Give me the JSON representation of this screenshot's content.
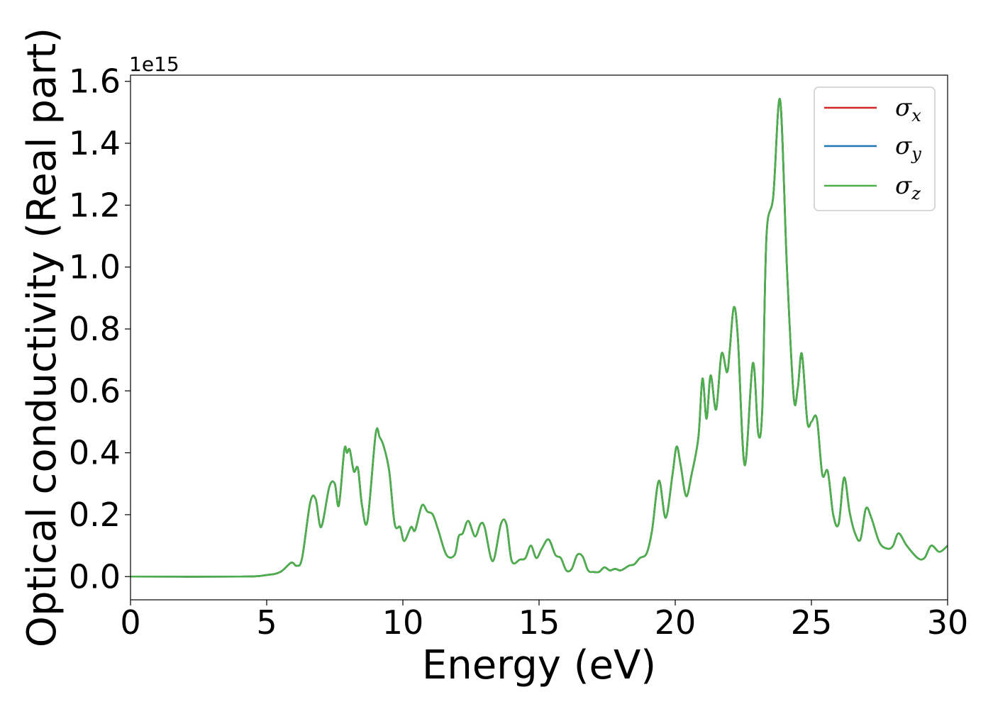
{
  "chart_data": {
    "type": "line",
    "title": "",
    "xlabel": "Energy (eV)",
    "ylabel": "Optical conductivity (Real part)",
    "y_offset_label": "1e15",
    "xlim": [
      0,
      30
    ],
    "ylim": [
      -0.075,
      1.62
    ],
    "x_ticks": [
      0,
      5,
      10,
      15,
      20,
      25,
      30
    ],
    "x_tick_labels": [
      "0",
      "5",
      "10",
      "15",
      "20",
      "25",
      "30"
    ],
    "y_ticks": [
      0.0,
      0.2,
      0.4,
      0.6,
      0.8,
      1.0,
      1.2,
      1.4,
      1.6
    ],
    "y_tick_labels": [
      "0.0",
      "0.2",
      "0.4",
      "0.6",
      "0.8",
      "1.0",
      "1.2",
      "1.4",
      "1.6"
    ],
    "grid": false,
    "legend_position": "top-right",
    "x": [
      0,
      4,
      5,
      5.5,
      5.9,
      6.1,
      6.3,
      6.6,
      6.8,
      7.0,
      7.3,
      7.5,
      7.65,
      7.85,
      7.95,
      8.05,
      8.2,
      8.35,
      8.5,
      8.7,
      9.0,
      9.15,
      9.3,
      9.5,
      9.7,
      9.9,
      10.05,
      10.3,
      10.45,
      10.7,
      10.9,
      11.1,
      11.3,
      11.6,
      11.9,
      12.05,
      12.2,
      12.4,
      12.65,
      12.85,
      13.0,
      13.3,
      13.6,
      13.8,
      14.0,
      14.3,
      14.5,
      14.7,
      14.9,
      15.1,
      15.35,
      15.6,
      15.8,
      16.0,
      16.2,
      16.4,
      16.6,
      16.8,
      17.0,
      17.2,
      17.4,
      17.6,
      17.8,
      18.0,
      18.3,
      18.5,
      18.7,
      18.95,
      19.15,
      19.4,
      19.65,
      19.9,
      20.05,
      20.2,
      20.4,
      20.6,
      20.85,
      21.0,
      21.15,
      21.3,
      21.5,
      21.7,
      21.9,
      22.0,
      22.15,
      22.3,
      22.55,
      22.85,
      23.05,
      23.2,
      23.35,
      23.6,
      23.85,
      24.1,
      24.35,
      24.5,
      24.65,
      24.85,
      25.0,
      25.2,
      25.4,
      25.6,
      25.8,
      26.0,
      26.2,
      26.4,
      26.6,
      26.8,
      27.0,
      27.2,
      27.5,
      27.8,
      28.0,
      28.2,
      28.5,
      28.9,
      29.15,
      29.4,
      29.7,
      30.0
    ],
    "series": [
      {
        "name": "σx",
        "color": "#d62728",
        "values": [
          0.0,
          0.0,
          0.005,
          0.015,
          0.045,
          0.035,
          0.06,
          0.24,
          0.25,
          0.16,
          0.29,
          0.3,
          0.23,
          0.41,
          0.4,
          0.41,
          0.34,
          0.35,
          0.23,
          0.18,
          0.46,
          0.45,
          0.42,
          0.34,
          0.17,
          0.16,
          0.115,
          0.16,
          0.15,
          0.23,
          0.21,
          0.2,
          0.15,
          0.07,
          0.07,
          0.13,
          0.14,
          0.18,
          0.13,
          0.17,
          0.16,
          0.05,
          0.17,
          0.17,
          0.05,
          0.055,
          0.06,
          0.1,
          0.06,
          0.09,
          0.12,
          0.07,
          0.06,
          0.02,
          0.025,
          0.07,
          0.065,
          0.02,
          0.015,
          0.015,
          0.03,
          0.02,
          0.025,
          0.02,
          0.035,
          0.04,
          0.06,
          0.075,
          0.15,
          0.31,
          0.19,
          0.33,
          0.42,
          0.36,
          0.26,
          0.33,
          0.45,
          0.64,
          0.51,
          0.65,
          0.54,
          0.72,
          0.66,
          0.73,
          0.87,
          0.77,
          0.36,
          0.69,
          0.46,
          0.55,
          1.1,
          1.23,
          1.54,
          1.0,
          0.58,
          0.61,
          0.72,
          0.5,
          0.5,
          0.51,
          0.33,
          0.34,
          0.2,
          0.17,
          0.32,
          0.21,
          0.14,
          0.12,
          0.22,
          0.19,
          0.11,
          0.09,
          0.1,
          0.14,
          0.1,
          0.06,
          0.06,
          0.1,
          0.08,
          0.1
        ]
      },
      {
        "name": "σy",
        "color": "#1f77b4",
        "values": [
          0.0,
          0.0,
          0.005,
          0.015,
          0.045,
          0.035,
          0.06,
          0.24,
          0.25,
          0.16,
          0.29,
          0.3,
          0.23,
          0.41,
          0.4,
          0.41,
          0.34,
          0.35,
          0.23,
          0.18,
          0.46,
          0.45,
          0.42,
          0.34,
          0.17,
          0.16,
          0.115,
          0.16,
          0.15,
          0.23,
          0.21,
          0.2,
          0.15,
          0.07,
          0.07,
          0.13,
          0.14,
          0.18,
          0.13,
          0.17,
          0.16,
          0.05,
          0.17,
          0.17,
          0.05,
          0.055,
          0.06,
          0.1,
          0.06,
          0.09,
          0.12,
          0.07,
          0.06,
          0.02,
          0.025,
          0.07,
          0.065,
          0.02,
          0.015,
          0.015,
          0.03,
          0.02,
          0.025,
          0.02,
          0.035,
          0.04,
          0.06,
          0.075,
          0.15,
          0.31,
          0.19,
          0.33,
          0.42,
          0.36,
          0.26,
          0.33,
          0.45,
          0.64,
          0.51,
          0.65,
          0.54,
          0.72,
          0.66,
          0.73,
          0.87,
          0.77,
          0.36,
          0.69,
          0.46,
          0.55,
          1.1,
          1.23,
          1.54,
          1.0,
          0.58,
          0.61,
          0.72,
          0.5,
          0.5,
          0.51,
          0.33,
          0.34,
          0.2,
          0.17,
          0.32,
          0.21,
          0.14,
          0.12,
          0.22,
          0.19,
          0.11,
          0.09,
          0.1,
          0.14,
          0.1,
          0.06,
          0.06,
          0.1,
          0.08,
          0.1
        ]
      },
      {
        "name": "σz",
        "color": "#4daf4a",
        "values": [
          0.0,
          0.0,
          0.005,
          0.015,
          0.045,
          0.035,
          0.06,
          0.24,
          0.25,
          0.16,
          0.29,
          0.3,
          0.23,
          0.41,
          0.4,
          0.41,
          0.34,
          0.35,
          0.23,
          0.18,
          0.46,
          0.45,
          0.42,
          0.34,
          0.17,
          0.16,
          0.115,
          0.16,
          0.15,
          0.23,
          0.21,
          0.2,
          0.15,
          0.07,
          0.07,
          0.13,
          0.14,
          0.18,
          0.13,
          0.17,
          0.16,
          0.05,
          0.17,
          0.17,
          0.05,
          0.055,
          0.06,
          0.1,
          0.06,
          0.09,
          0.12,
          0.07,
          0.06,
          0.02,
          0.025,
          0.07,
          0.065,
          0.02,
          0.015,
          0.015,
          0.03,
          0.02,
          0.025,
          0.02,
          0.035,
          0.04,
          0.06,
          0.075,
          0.15,
          0.31,
          0.19,
          0.33,
          0.42,
          0.36,
          0.26,
          0.33,
          0.45,
          0.64,
          0.51,
          0.65,
          0.54,
          0.72,
          0.66,
          0.73,
          0.87,
          0.77,
          0.36,
          0.69,
          0.46,
          0.55,
          1.1,
          1.23,
          1.54,
          1.0,
          0.58,
          0.61,
          0.72,
          0.5,
          0.5,
          0.51,
          0.33,
          0.34,
          0.2,
          0.17,
          0.32,
          0.21,
          0.14,
          0.12,
          0.22,
          0.19,
          0.11,
          0.09,
          0.1,
          0.14,
          0.1,
          0.06,
          0.06,
          0.1,
          0.08,
          0.1
        ]
      }
    ],
    "legend": [
      {
        "symbol": "σ",
        "sub": "x",
        "color": "#d62728"
      },
      {
        "symbol": "σ",
        "sub": "y",
        "color": "#1f77b4"
      },
      {
        "symbol": "σ",
        "sub": "z",
        "color": "#4daf4a"
      }
    ]
  }
}
